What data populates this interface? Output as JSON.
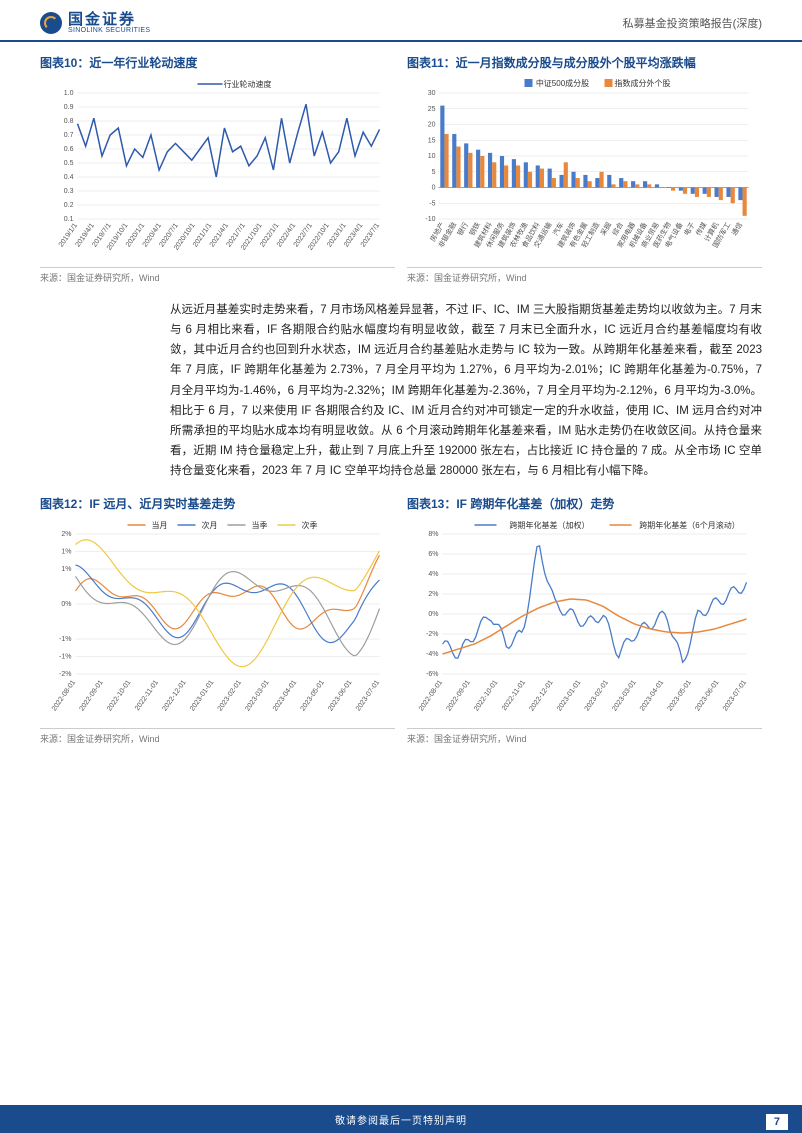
{
  "header": {
    "logo_cn": "国金证券",
    "logo_en": "SINOLINK SECURITIES",
    "report_type": "私募基金投资策略报告(深度)"
  },
  "chart10": {
    "title": "图表10：近一年行业轮动速度",
    "type": "line",
    "legend": [
      "行业轮动速度"
    ],
    "colors": [
      "#2e5aac"
    ],
    "x_labels": [
      "2019/1/1",
      "2019/4/1",
      "2019/7/1",
      "2019/10/1",
      "2020/1/1",
      "2020/4/1",
      "2020/7/1",
      "2020/10/1",
      "2021/1/1",
      "2021/4/1",
      "2021/7/1",
      "2021/10/1",
      "2022/1/1",
      "2022/4/1",
      "2022/7/1",
      "2022/10/1",
      "2023/1/1",
      "2023/4/1",
      "2023/7/1"
    ],
    "ylim": [
      0.1,
      1.0
    ],
    "ytick_step": 0.1,
    "values": [
      0.78,
      0.62,
      0.82,
      0.55,
      0.7,
      0.75,
      0.48,
      0.6,
      0.54,
      0.7,
      0.45,
      0.58,
      0.64,
      0.58,
      0.52,
      0.6,
      0.68,
      0.4,
      0.75,
      0.58,
      0.62,
      0.48,
      0.55,
      0.68,
      0.45,
      0.82,
      0.5,
      0.72,
      0.92,
      0.55,
      0.72,
      0.5,
      0.58,
      0.82,
      0.55,
      0.72,
      0.62,
      0.74
    ],
    "grid_color": "#dddddd",
    "background": "#ffffff",
    "source": "来源：国金证券研究所，Wind"
  },
  "chart11": {
    "title": "图表11：近一月指数成分股与成分股外个股平均涨跌幅",
    "type": "bar",
    "legend": [
      "中证500成分股",
      "指数成分外个股"
    ],
    "colors": [
      "#4a7bc9",
      "#e8883d"
    ],
    "x_labels": [
      "房地产",
      "非银金融",
      "银行",
      "钢铁",
      "建筑材料",
      "休闲服务",
      "建筑装饰",
      "农林牧渔",
      "食品饮料",
      "交通运输",
      "汽车",
      "建筑装饰",
      "有色金属",
      "轻工制造",
      "采掘",
      "综合",
      "家用电器",
      "机械设备",
      "商业贸易",
      "医药生物",
      "电气设备",
      "电子",
      "传媒",
      "计算机",
      "国防军工",
      "通信"
    ],
    "series1": [
      26,
      17,
      14,
      12,
      11,
      10,
      9,
      8,
      7,
      6,
      4,
      5,
      4,
      3,
      4,
      3,
      2,
      2,
      1,
      0,
      -1,
      -2,
      -2,
      -3,
      -3,
      -4
    ],
    "series2": [
      17,
      13,
      11,
      10,
      8,
      7,
      7,
      5,
      6,
      3,
      8,
      3,
      2,
      5,
      1,
      2,
      1,
      1,
      0,
      -1,
      -2,
      -3,
      -3,
      -4,
      -5,
      -9
    ],
    "ylim": [
      -10,
      30
    ],
    "ytick_step": 5,
    "grid_color": "#dddddd",
    "source": "来源：国金证券研究所，Wind"
  },
  "body": "从远近月基差实时走势来看，7 月市场风格差异显著，不过 IF、IC、IM 三大股指期货基差走势均以收敛为主。7 月末与 6 月相比来看，IF 各期限合约贴水幅度均有明显收敛，截至 7 月末已全面升水，IC 远近月合约基差幅度均有收敛，其中近月合约也回到升水状态，IM 远近月合约基差贴水走势与 IC 较为一致。从跨期年化基差来看，截至 2023 年 7 月底，IF 跨期年化基差为 2.73%，7 月全月平均为 1.27%，6 月平均为-2.01%；IC 跨期年化基差为-0.75%，7 月全月平均为-1.46%，6 月平均为-2.32%；IM 跨期年化基差为-2.36%，7 月全月平均为-2.12%，6 月平均为-3.0%。相比于 6 月，7 以来使用 IF 各期限合约及 IC、IM 近月合约对冲可锁定一定的升水收益，使用 IC、IM 远月合约对冲所需承担的平均贴水成本均有明显收敛。从 6 个月滚动跨期年化基差来看，IM 贴水走势仍在收敛区间。从持仓量来看，近期 IM 持仓量稳定上升，截止到 7 月底上升至 192000 张左右，占比接近 IC 持仓量的 7 成。从全市场 IC 空单持仓量变化来看，2023 年 7 月 IC 空单平均持仓总量 280000 张左右，与 6 月相比有小幅下降。",
  "chart12": {
    "title": "图表12：IF 远月、近月实时基差走势",
    "type": "line",
    "legend": [
      "当月",
      "次月",
      "当季",
      "次季"
    ],
    "colors": [
      "#e8883d",
      "#4a7bc9",
      "#9e9e9e",
      "#f0c843"
    ],
    "x_labels": [
      "2022-08-01",
      "2022-09-01",
      "2022-10-01",
      "2022-11-01",
      "2022-12-01",
      "2023-01-01",
      "2023-02-01",
      "2023-03-01",
      "2023-04-01",
      "2023-05-01",
      "2023-06-01",
      "2023-07-01"
    ],
    "ylim": [
      -2,
      2
    ],
    "ytick_step": 1,
    "y_format": "percent",
    "grid_color": "#dddddd",
    "source": "来源：国金证券研究所，Wind"
  },
  "chart13": {
    "title": "图表13：IF 跨期年化基差（加权）走势",
    "type": "line",
    "legend": [
      "跨期年化基差（加权）",
      "跨期年化基差（6个月滚动）"
    ],
    "colors": [
      "#4a7bc9",
      "#e8883d"
    ],
    "x_labels": [
      "2022-08-01",
      "2022-09-01",
      "2022-10-01",
      "2022-11-01",
      "2022-12-01",
      "2023-01-01",
      "2023-02-01",
      "2023-03-01",
      "2023-04-01",
      "2023-05-01",
      "2023-06-01",
      "2023-07-01"
    ],
    "ylim": [
      -6,
      8
    ],
    "ytick_step": 2,
    "y_format": "percent",
    "grid_color": "#dddddd",
    "source": "来源：国金证券研究所，Wind"
  },
  "footer": {
    "disclaimer": "敬请参阅最后一页特别声明",
    "page": "7"
  }
}
